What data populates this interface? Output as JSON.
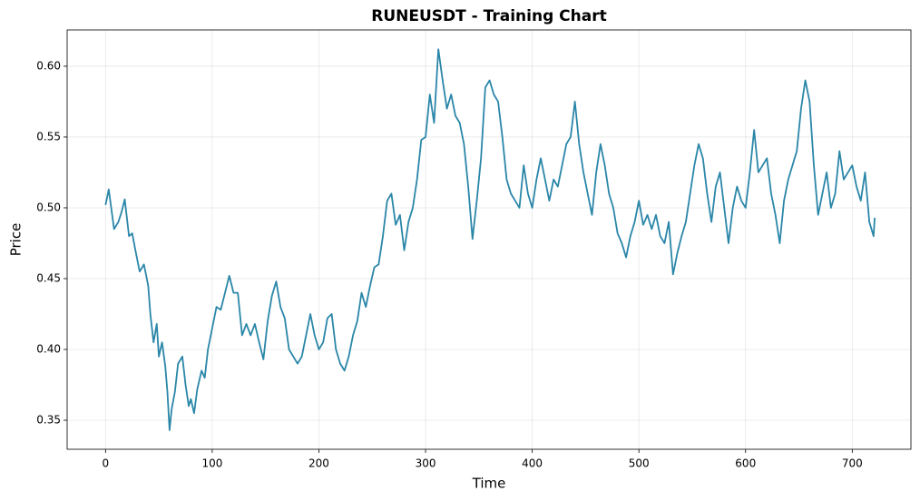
{
  "chart_data": {
    "type": "line",
    "title": "RUNEUSDT - Training Chart",
    "xlabel": "Time",
    "ylabel": "Price",
    "color": "#2a86a8",
    "grid": true,
    "xlim": [
      -36,
      755
    ],
    "ylim": [
      0.3295,
      0.6256
    ],
    "xticks": [
      0,
      100,
      200,
      300,
      400,
      500,
      600,
      700
    ],
    "yticks": [
      0.35,
      {
        "value": 0.4,
        "label": "0.40"
      },
      0.45,
      {
        "value": 0.5,
        "label": "0.50"
      },
      0.55,
      {
        "value": 0.6,
        "label": "0.60"
      }
    ],
    "x": [
      0,
      3,
      8,
      12,
      15,
      18,
      22,
      25,
      28,
      32,
      36,
      40,
      42,
      45,
      48,
      50,
      53,
      56,
      58,
      60,
      62,
      65,
      68,
      72,
      75,
      78,
      80,
      83,
      86,
      90,
      93,
      96,
      100,
      104,
      108,
      112,
      116,
      120,
      124,
      128,
      132,
      136,
      140,
      144,
      148,
      152,
      156,
      160,
      164,
      168,
      172,
      176,
      180,
      184,
      188,
      192,
      196,
      200,
      204,
      208,
      212,
      216,
      220,
      224,
      228,
      232,
      236,
      240,
      244,
      248,
      252,
      256,
      260,
      264,
      268,
      272,
      276,
      280,
      284,
      288,
      292,
      296,
      300,
      304,
      308,
      312,
      316,
      320,
      324,
      328,
      332,
      336,
      340,
      344,
      348,
      352,
      356,
      360,
      364,
      368,
      372,
      376,
      380,
      384,
      388,
      392,
      396,
      400,
      404,
      408,
      412,
      416,
      420,
      424,
      428,
      432,
      436,
      440,
      444,
      448,
      452,
      456,
      460,
      464,
      468,
      472,
      476,
      480,
      484,
      488,
      492,
      496,
      500,
      504,
      508,
      512,
      516,
      520,
      524,
      528,
      532,
      536,
      540,
      544,
      548,
      552,
      556,
      560,
      564,
      568,
      572,
      576,
      580,
      584,
      588,
      592,
      596,
      600,
      604,
      608,
      612,
      616,
      620,
      624,
      628,
      632,
      636,
      640,
      644,
      648,
      652,
      656,
      660,
      664,
      668,
      672,
      676,
      680,
      684,
      688,
      692,
      696,
      700,
      704,
      708,
      712,
      716,
      720,
      721
    ],
    "values": [
      0.502,
      0.513,
      0.485,
      0.49,
      0.497,
      0.506,
      0.48,
      0.482,
      0.47,
      0.455,
      0.46,
      0.445,
      0.425,
      0.405,
      0.418,
      0.395,
      0.405,
      0.388,
      0.37,
      0.343,
      0.358,
      0.37,
      0.39,
      0.395,
      0.375,
      0.36,
      0.365,
      0.355,
      0.372,
      0.385,
      0.38,
      0.4,
      0.415,
      0.43,
      0.428,
      0.44,
      0.452,
      0.44,
      0.44,
      0.41,
      0.418,
      0.41,
      0.418,
      0.405,
      0.393,
      0.42,
      0.438,
      0.448,
      0.43,
      0.422,
      0.4,
      0.395,
      0.39,
      0.395,
      0.41,
      0.425,
      0.41,
      0.4,
      0.405,
      0.422,
      0.425,
      0.4,
      0.39,
      0.385,
      0.395,
      0.41,
      0.42,
      0.44,
      0.43,
      0.445,
      0.458,
      0.46,
      0.48,
      0.505,
      0.51,
      0.488,
      0.495,
      0.47,
      0.49,
      0.5,
      0.52,
      0.548,
      0.55,
      0.58,
      0.56,
      0.612,
      0.59,
      0.57,
      0.58,
      0.565,
      0.56,
      0.545,
      0.515,
      0.478,
      0.505,
      0.535,
      0.585,
      0.59,
      0.58,
      0.575,
      0.55,
      0.52,
      0.51,
      0.505,
      0.5,
      0.53,
      0.51,
      0.5,
      0.52,
      0.535,
      0.52,
      0.505,
      0.52,
      0.515,
      0.53,
      0.545,
      0.55,
      0.575,
      0.545,
      0.525,
      0.51,
      0.495,
      0.525,
      0.545,
      0.53,
      0.51,
      0.5,
      0.482,
      0.475,
      0.465,
      0.48,
      0.49,
      0.505,
      0.488,
      0.495,
      0.485,
      0.495,
      0.48,
      0.475,
      0.49,
      0.453,
      0.468,
      0.48,
      0.49,
      0.51,
      0.53,
      0.545,
      0.535,
      0.51,
      0.49,
      0.515,
      0.525,
      0.5,
      0.475,
      0.5,
      0.515,
      0.505,
      0.5,
      0.525,
      0.555,
      0.525,
      0.53,
      0.535,
      0.51,
      0.495,
      0.475,
      0.505,
      0.52,
      0.53,
      0.54,
      0.57,
      0.59,
      0.575,
      0.53,
      0.495,
      0.51,
      0.525,
      0.5,
      0.51,
      0.54,
      0.52,
      0.525,
      0.53,
      0.515,
      0.505,
      0.525,
      0.49,
      0.48,
      0.493
    ]
  }
}
